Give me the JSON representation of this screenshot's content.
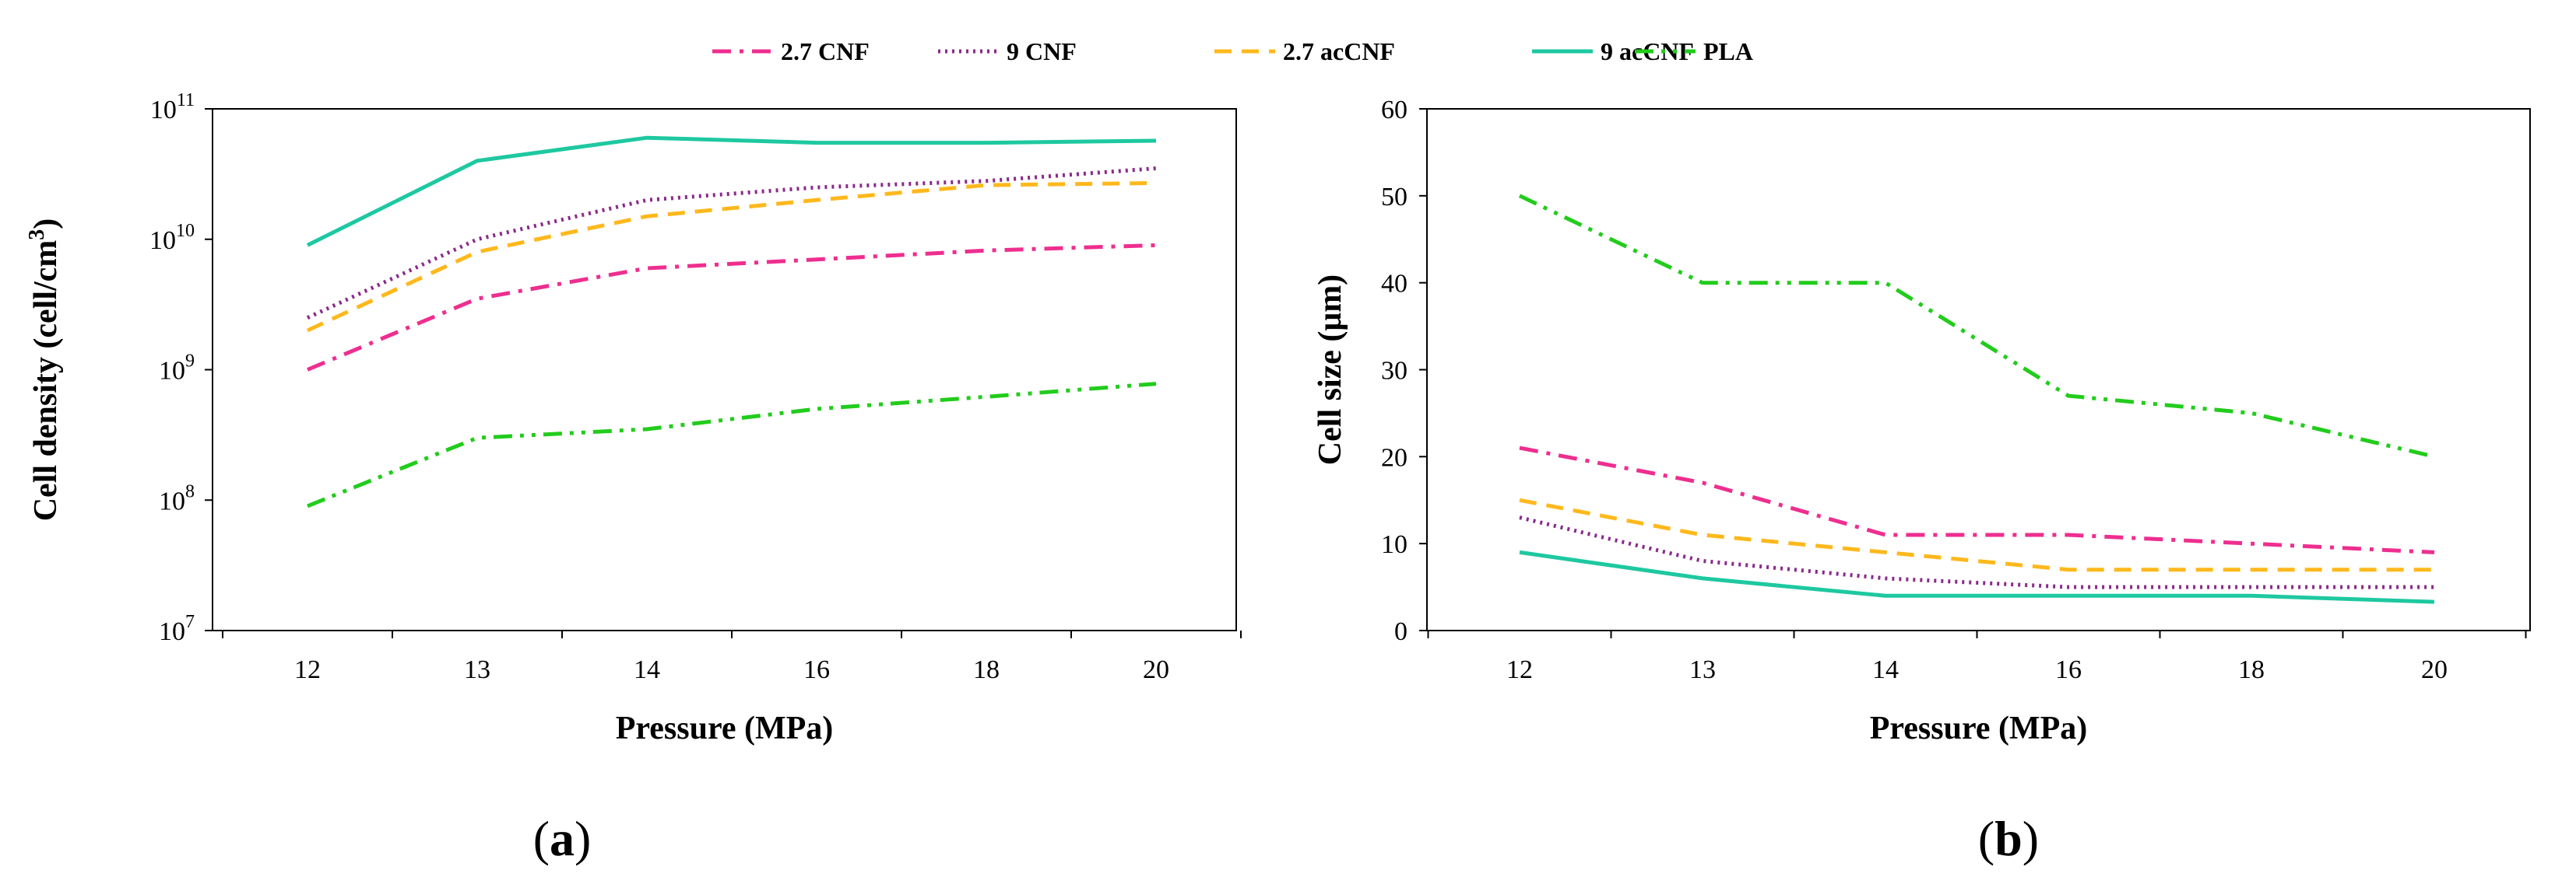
{
  "legend": [
    {
      "id": "cnf27",
      "label": "2.7 CNF",
      "color": "#ee2e8f",
      "dash": "dashdot"
    },
    {
      "id": "cnf9",
      "label": "9 CNF",
      "color": "#8a2a8a",
      "dash": "dotted"
    },
    {
      "id": "accnf27",
      "label": "2.7 acCNF",
      "color": "#ffb81c",
      "dash": "dashed"
    },
    {
      "id": "accnf9",
      "label": "9 acCNF",
      "color": "#1ec8a0",
      "dash": "solid"
    },
    {
      "id": "pla",
      "label": "PLA",
      "color": "#22cc1c",
      "dash": "dashdotdot"
    }
  ],
  "chart_data": [
    {
      "type": "line",
      "panel": "(a)",
      "panel_parts": [
        "(",
        "a",
        ")"
      ],
      "xlabel": "Pressure (MPa)",
      "ylabel": "Cell density (cell/cm3)",
      "ylabel_parts": [
        "Cell density (cell/cm",
        "3",
        ")"
      ],
      "yscale": "log",
      "ylim": [
        10000000,
        100000000000
      ],
      "yticks": [
        {
          "value": 10000000,
          "base": "10",
          "exp": "7"
        },
        {
          "value": 100000000,
          "base": "10",
          "exp": "8"
        },
        {
          "value": 1000000000,
          "base": "10",
          "exp": "9"
        },
        {
          "value": 10000000000,
          "base": "10",
          "exp": "10"
        },
        {
          "value": 100000000000,
          "base": "10",
          "exp": "11"
        }
      ],
      "categories": [
        "12",
        "13",
        "14",
        "16",
        "18",
        "20"
      ],
      "series": [
        {
          "id": "cnf27",
          "name": "2.7 CNF",
          "values": [
            1000000000,
            3500000000,
            6000000000,
            7000000000,
            8200000000,
            9000000000
          ]
        },
        {
          "id": "cnf9",
          "name": "9 CNF",
          "values": [
            2500000000,
            10000000000,
            20000000000,
            25000000000,
            28000000000,
            35000000000
          ]
        },
        {
          "id": "accnf27",
          "name": "2.7 acCNF",
          "values": [
            2000000000,
            8000000000,
            15000000000,
            20000000000,
            26000000000,
            27000000000
          ]
        },
        {
          "id": "accnf9",
          "name": "9 acCNF",
          "values": [
            9000000000,
            40000000000,
            60000000000,
            55000000000,
            55000000000,
            57000000000
          ]
        },
        {
          "id": "pla",
          "name": "PLA",
          "values": [
            90000000,
            300000000,
            350000000,
            500000000,
            620000000,
            780000000
          ]
        }
      ]
    },
    {
      "type": "line",
      "panel": "(b)",
      "panel_parts": [
        "(",
        "b",
        ")"
      ],
      "xlabel": "Pressure (MPa)",
      "ylabel": "Cell size (μm)",
      "yscale": "linear",
      "ylim": [
        0,
        60
      ],
      "yticks": [
        {
          "value": 0,
          "label": "0"
        },
        {
          "value": 10,
          "label": "10"
        },
        {
          "value": 20,
          "label": "20"
        },
        {
          "value": 30,
          "label": "30"
        },
        {
          "value": 40,
          "label": "40"
        },
        {
          "value": 50,
          "label": "50"
        },
        {
          "value": 60,
          "label": "60"
        }
      ],
      "categories": [
        "12",
        "13",
        "14",
        "16",
        "18",
        "20"
      ],
      "series": [
        {
          "id": "cnf27",
          "name": "2.7 CNF",
          "values": [
            21,
            17,
            11,
            11,
            10,
            9
          ]
        },
        {
          "id": "cnf9",
          "name": "9 CNF",
          "values": [
            13,
            8,
            6,
            5,
            5,
            5
          ]
        },
        {
          "id": "accnf27",
          "name": "2.7 acCNF",
          "values": [
            15,
            11,
            9,
            7,
            7,
            7
          ]
        },
        {
          "id": "accnf9",
          "name": "9 acCNF",
          "values": [
            9,
            6,
            4,
            4,
            4,
            3.3
          ]
        },
        {
          "id": "pla",
          "name": "PLA",
          "values": [
            50,
            40,
            40,
            27,
            25,
            20
          ]
        }
      ]
    }
  ]
}
